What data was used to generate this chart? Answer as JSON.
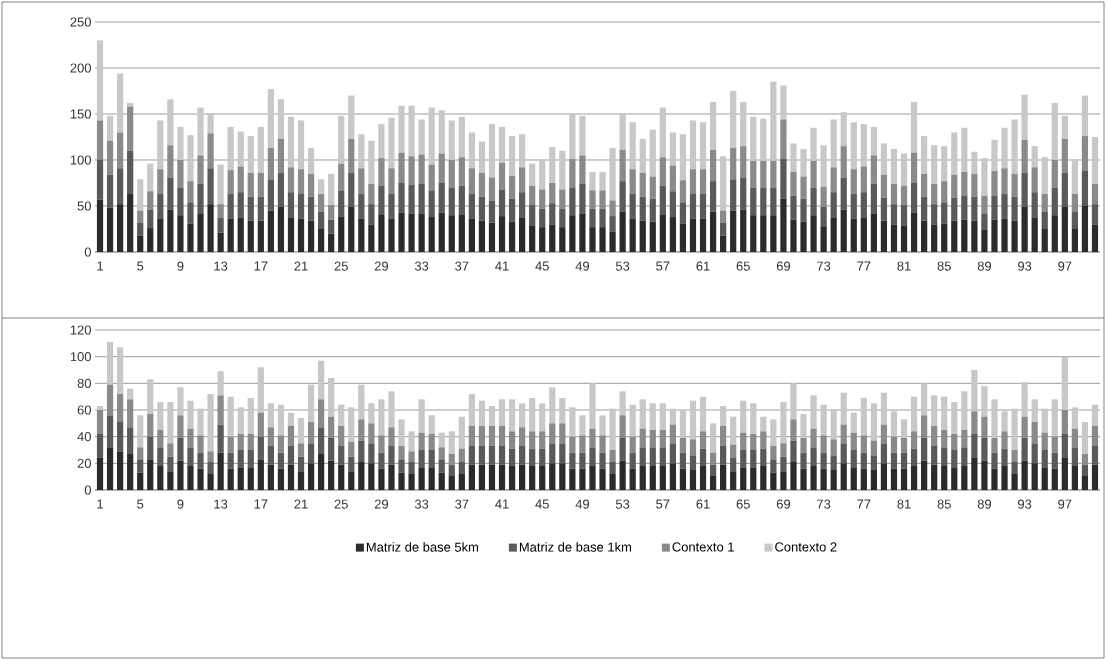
{
  "chart_data": [
    {
      "type": "bar",
      "stacked": true,
      "grid": "y",
      "legend": false,
      "ylim": [
        0,
        250
      ],
      "yticks": [
        0,
        50,
        100,
        150,
        200,
        250
      ],
      "categories": [
        "1",
        null,
        null,
        null,
        "5",
        null,
        null,
        null,
        "9",
        null,
        null,
        null,
        "13",
        null,
        null,
        null,
        "17",
        null,
        null,
        null,
        "21",
        null,
        null,
        null,
        "25",
        null,
        null,
        null,
        "29",
        null,
        null,
        null,
        "33",
        null,
        null,
        null,
        "37",
        null,
        null,
        null,
        "41",
        null,
        null,
        null,
        "45",
        null,
        null,
        null,
        "49",
        null,
        null,
        null,
        "53",
        null,
        null,
        null,
        "57",
        null,
        null,
        null,
        "61",
        null,
        null,
        null,
        "65",
        null,
        null,
        null,
        "69",
        null,
        null,
        null,
        "73",
        null,
        null,
        null,
        "77",
        null,
        null,
        null,
        "81",
        null,
        null,
        null,
        "85",
        null,
        null,
        null,
        "89",
        null,
        null,
        null,
        "93",
        null,
        null,
        null,
        "97",
        null,
        null,
        null
      ],
      "series": [
        {
          "color": "#2b2b2b",
          "values": [
            57,
            48,
            52,
            63,
            18,
            26,
            36,
            46,
            40,
            31,
            42,
            52,
            21,
            36,
            37,
            34,
            34,
            45,
            49,
            37,
            36,
            34,
            25,
            20,
            38,
            49,
            36,
            30,
            41,
            36,
            43,
            42,
            42,
            38,
            43,
            40,
            41,
            36,
            34,
            32,
            39,
            33,
            37,
            29,
            27,
            30,
            27,
            40,
            42,
            27,
            27,
            22,
            44,
            36,
            34,
            33,
            41,
            38,
            31,
            36,
            36,
            44,
            18,
            45,
            46,
            40,
            40,
            40,
            58,
            35,
            33,
            40,
            28,
            37,
            46,
            36,
            37,
            42,
            34,
            30,
            29,
            43,
            34,
            30,
            31,
            34,
            35,
            34,
            24,
            35,
            36,
            34,
            49,
            37,
            25,
            40,
            49,
            25,
            50,
            30
          ]
        },
        {
          "color": "#5a5a5a",
          "values": [
            43,
            36,
            39,
            47,
            14,
            20,
            27,
            35,
            30,
            23,
            32,
            39,
            16,
            27,
            28,
            26,
            26,
            34,
            37,
            28,
            27,
            26,
            19,
            15,
            29,
            37,
            27,
            22,
            31,
            27,
            32,
            31,
            32,
            29,
            32,
            30,
            31,
            27,
            26,
            24,
            29,
            25,
            28,
            22,
            20,
            23,
            20,
            30,
            32,
            20,
            20,
            17,
            33,
            27,
            26,
            25,
            31,
            28,
            23,
            27,
            27,
            33,
            14,
            34,
            35,
            30,
            30,
            30,
            43,
            26,
            25,
            30,
            21,
            28,
            35,
            27,
            28,
            32,
            25,
            22,
            22,
            32,
            26,
            22,
            23,
            25,
            26,
            26,
            18,
            26,
            27,
            26,
            37,
            28,
            19,
            30,
            37,
            19,
            38,
            22
          ]
        },
        {
          "color": "#8a8a8a",
          "values": [
            43,
            37,
            39,
            48,
            13,
            20,
            27,
            35,
            30,
            23,
            31,
            38,
            15,
            26,
            28,
            26,
            26,
            34,
            37,
            27,
            27,
            25,
            19,
            16,
            29,
            37,
            28,
            22,
            30,
            28,
            33,
            31,
            32,
            28,
            32,
            30,
            31,
            28,
            26,
            25,
            29,
            25,
            27,
            21,
            21,
            22,
            21,
            31,
            31,
            20,
            20,
            17,
            34,
            27,
            26,
            24,
            31,
            28,
            24,
            27,
            27,
            34,
            13,
            34,
            34,
            29,
            29,
            29,
            43,
            26,
            24,
            29,
            22,
            27,
            34,
            27,
            28,
            31,
            25,
            22,
            21,
            33,
            25,
            22,
            23,
            25,
            26,
            25,
            19,
            27,
            28,
            25,
            36,
            27,
            19,
            30,
            37,
            19,
            38,
            22
          ]
        },
        {
          "color": "#c8c8c8",
          "values": [
            87,
            27,
            64,
            4,
            34,
            30,
            53,
            50,
            36,
            50,
            52,
            22,
            43,
            47,
            38,
            40,
            50,
            64,
            43,
            55,
            53,
            28,
            16,
            34,
            52,
            47,
            37,
            47,
            37,
            55,
            51,
            55,
            38,
            62,
            47,
            43,
            44,
            39,
            34,
            58,
            39,
            43,
            36,
            24,
            32,
            39,
            42,
            50,
            43,
            20,
            20,
            57,
            40,
            51,
            37,
            51,
            54,
            36,
            50,
            53,
            51,
            52,
            59,
            62,
            48,
            48,
            46,
            86,
            37,
            31,
            30,
            36,
            45,
            52,
            37,
            51,
            46,
            31,
            34,
            38,
            35,
            55,
            41,
            42,
            38,
            46,
            48,
            24,
            41,
            34,
            44,
            59,
            49,
            23,
            40,
            62,
            25,
            37,
            44,
            51
          ]
        }
      ]
    },
    {
      "type": "bar",
      "stacked": true,
      "grid": "y",
      "legend": "bottom",
      "ylim": [
        0,
        120
      ],
      "yticks": [
        0,
        20,
        40,
        60,
        80,
        100,
        120
      ],
      "categories": [
        "1",
        null,
        null,
        null,
        "5",
        null,
        null,
        null,
        "9",
        null,
        null,
        null,
        "13",
        null,
        null,
        null,
        "17",
        null,
        null,
        null,
        "21",
        null,
        null,
        null,
        "25",
        null,
        null,
        null,
        "29",
        null,
        null,
        null,
        "33",
        null,
        null,
        null,
        "37",
        null,
        null,
        null,
        "41",
        null,
        null,
        null,
        "45",
        null,
        null,
        null,
        "49",
        null,
        null,
        null,
        "53",
        null,
        null,
        null,
        "57",
        null,
        null,
        null,
        "61",
        null,
        null,
        null,
        "65",
        null,
        null,
        null,
        "69",
        null,
        null,
        null,
        "73",
        null,
        null,
        null,
        "77",
        null,
        null,
        null,
        "81",
        null,
        null,
        null,
        "85",
        null,
        null,
        null,
        "89",
        null,
        null,
        null,
        "93",
        null,
        null,
        null,
        "97",
        null,
        null,
        null
      ],
      "series": [
        {
          "name": "Matriz de base 5km",
          "color": "#2b2b2b",
          "values": [
            24,
            32,
            29,
            27,
            13,
            23,
            18,
            14,
            22,
            18,
            16,
            12,
            28,
            16,
            17,
            17,
            23,
            19,
            16,
            19,
            14,
            20,
            27,
            22,
            19,
            14,
            21,
            20,
            16,
            19,
            13,
            12,
            17,
            17,
            13,
            11,
            12,
            19,
            19,
            19,
            19,
            18,
            19,
            18,
            18,
            20,
            20,
            16,
            16,
            18,
            16,
            12,
            22,
            16,
            18,
            18,
            18,
            20,
            16,
            15,
            18,
            11,
            19,
            14,
            17,
            17,
            18,
            13,
            14,
            21,
            16,
            18,
            16,
            15,
            20,
            17,
            16,
            15,
            20,
            16,
            16,
            18,
            22,
            19,
            18,
            17,
            18,
            24,
            22,
            16,
            18,
            12,
            22,
            20,
            17,
            16,
            24,
            18,
            11,
            19
          ]
        },
        {
          "name": "Matriz de base 1km",
          "color": "#5a5a5a",
          "values": [
            18,
            24,
            22,
            20,
            10,
            17,
            14,
            11,
            17,
            14,
            12,
            9,
            21,
            12,
            13,
            13,
            17,
            14,
            12,
            14,
            11,
            15,
            20,
            17,
            14,
            11,
            16,
            15,
            12,
            14,
            10,
            9,
            13,
            13,
            10,
            8,
            9,
            14,
            14,
            14,
            14,
            13,
            14,
            13,
            13,
            15,
            15,
            12,
            12,
            14,
            12,
            9,
            17,
            12,
            14,
            14,
            14,
            15,
            12,
            11,
            13,
            8,
            14,
            10,
            13,
            13,
            13,
            10,
            11,
            16,
            12,
            14,
            12,
            11,
            15,
            13,
            12,
            11,
            15,
            12,
            12,
            13,
            17,
            14,
            14,
            13,
            14,
            18,
            17,
            12,
            13,
            9,
            17,
            15,
            13,
            12,
            18,
            14,
            8,
            14
          ]
        },
        {
          "name": "Contexto 1",
          "color": "#8a8a8a",
          "values": [
            18,
            23,
            21,
            21,
            9,
            17,
            13,
            10,
            17,
            14,
            13,
            8,
            22,
            12,
            12,
            12,
            18,
            14,
            13,
            15,
            10,
            16,
            21,
            16,
            15,
            11,
            16,
            15,
            13,
            14,
            10,
            8,
            13,
            12,
            9,
            8,
            10,
            15,
            15,
            15,
            15,
            13,
            14,
            13,
            13,
            15,
            15,
            12,
            13,
            14,
            13,
            9,
            17,
            12,
            14,
            13,
            13,
            14,
            11,
            12,
            13,
            9,
            15,
            10,
            13,
            12,
            13,
            10,
            10,
            16,
            11,
            14,
            13,
            12,
            14,
            13,
            13,
            11,
            14,
            12,
            11,
            13,
            17,
            15,
            13,
            12,
            13,
            17,
            16,
            11,
            13,
            9,
            16,
            16,
            13,
            12,
            18,
            14,
            8,
            15
          ]
        },
        {
          "name": "Contexto 2",
          "color": "#c8c8c8",
          "values": [
            3,
            32,
            35,
            8,
            24,
            26,
            21,
            31,
            21,
            21,
            20,
            43,
            18,
            30,
            20,
            27,
            34,
            18,
            23,
            10,
            19,
            28,
            29,
            29,
            16,
            26,
            26,
            15,
            27,
            27,
            20,
            15,
            25,
            14,
            11,
            17,
            24,
            24,
            19,
            15,
            20,
            24,
            18,
            25,
            21,
            27,
            19,
            22,
            15,
            34,
            15,
            31,
            18,
            24,
            22,
            20,
            20,
            12,
            21,
            29,
            26,
            22,
            15,
            21,
            24,
            23,
            11,
            20,
            31,
            27,
            18,
            25,
            23,
            22,
            24,
            15,
            28,
            28,
            24,
            19,
            14,
            26,
            24,
            23,
            25,
            24,
            29,
            31,
            23,
            29,
            15,
            31,
            26,
            17,
            18,
            28,
            40,
            16,
            24,
            16
          ]
        }
      ]
    }
  ]
}
